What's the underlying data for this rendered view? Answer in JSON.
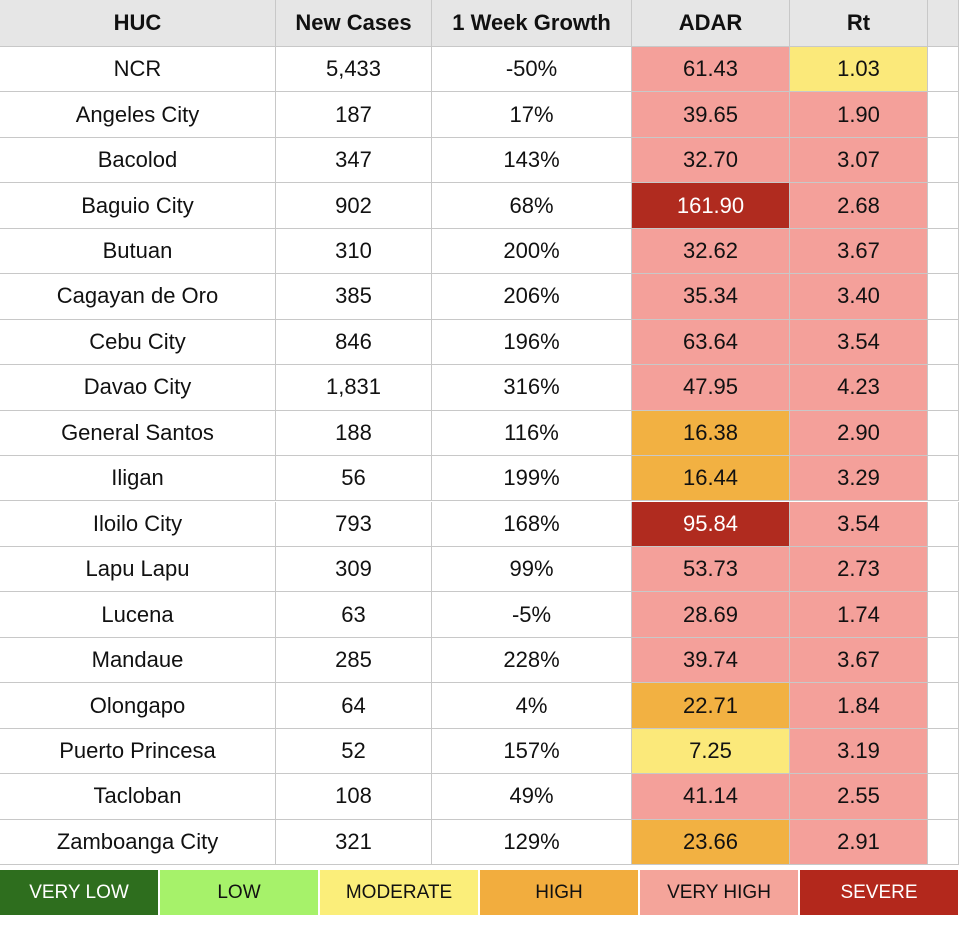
{
  "table": {
    "header": [
      "HUC",
      "New Cases",
      "1 Week Growth",
      "ADAR",
      "Rt"
    ],
    "rows": [
      [
        "NCR",
        "5,433",
        "-50%",
        "61.43",
        "1.03"
      ],
      [
        "Angeles City",
        "187",
        "17%",
        "39.65",
        "1.90"
      ],
      [
        "Bacolod",
        "347",
        "143%",
        "32.70",
        "3.07"
      ],
      [
        "Baguio City",
        "902",
        "68%",
        "161.90",
        "2.68"
      ],
      [
        "Butuan",
        "310",
        "200%",
        "32.62",
        "3.67"
      ],
      [
        "Cagayan de Oro",
        "385",
        "206%",
        "35.34",
        "3.40"
      ],
      [
        "Cebu City",
        "846",
        "196%",
        "63.64",
        "3.54"
      ],
      [
        "Davao City",
        "1,831",
        "316%",
        "47.95",
        "4.23"
      ],
      [
        "General Santos",
        "188",
        "116%",
        "16.38",
        "2.90"
      ],
      [
        "Iligan",
        "56",
        "199%",
        "16.44",
        "3.29"
      ],
      [
        "Iloilo City",
        "793",
        "168%",
        "95.84",
        "3.54"
      ],
      [
        "Lapu Lapu",
        "309",
        "99%",
        "53.73",
        "2.73"
      ],
      [
        "Lucena",
        "63",
        "-5%",
        "28.69",
        "1.74"
      ],
      [
        "Mandaue",
        "285",
        "228%",
        "39.74",
        "3.67"
      ],
      [
        "Olongapo",
        "64",
        "4%",
        "22.71",
        "1.84"
      ],
      [
        "Puerto Princesa",
        "52",
        "157%",
        "7.25",
        "3.19"
      ],
      [
        "Tacloban",
        "108",
        "49%",
        "41.14",
        "2.55"
      ],
      [
        "Zamboanga City",
        "321",
        "129%",
        "23.66",
        "2.91"
      ]
    ],
    "adar_colors": [
      "#f4a09a",
      "#f4a09a",
      "#f4a09a",
      "#b02b1f",
      "#f4a09a",
      "#f4a09a",
      "#f4a09a",
      "#f4a09a",
      "#f2b142",
      "#f2b142",
      "#b02b1f",
      "#f4a09a",
      "#f4a09a",
      "#f4a09a",
      "#f2b142",
      "#fbe97a",
      "#f4a09a",
      "#f2b142"
    ],
    "rt_colors": [
      "#fbe97a",
      "#f4a09a",
      "#f4a09a",
      "#f4a09a",
      "#f4a09a",
      "#f4a09a",
      "#f4a09a",
      "#f4a09a",
      "#f4a09a",
      "#f4a09a",
      "#f4a09a",
      "#f4a09a",
      "#f4a09a",
      "#f4a09a",
      "#f4a09a",
      "#f4a09a",
      "#f4a09a",
      "#f4a09a"
    ]
  },
  "legend": {
    "items": [
      {
        "label": "VERY LOW",
        "color": "#2e6e1e"
      },
      {
        "label": "LOW",
        "color": "#a6f26a"
      },
      {
        "label": "MODERATE",
        "color": "#fbee7a"
      },
      {
        "label": "HIGH",
        "color": "#f2ad3e"
      },
      {
        "label": "VERY HIGH",
        "color": "#f4a49a"
      },
      {
        "label": "SEVERE",
        "color": "#b3281c"
      }
    ]
  }
}
